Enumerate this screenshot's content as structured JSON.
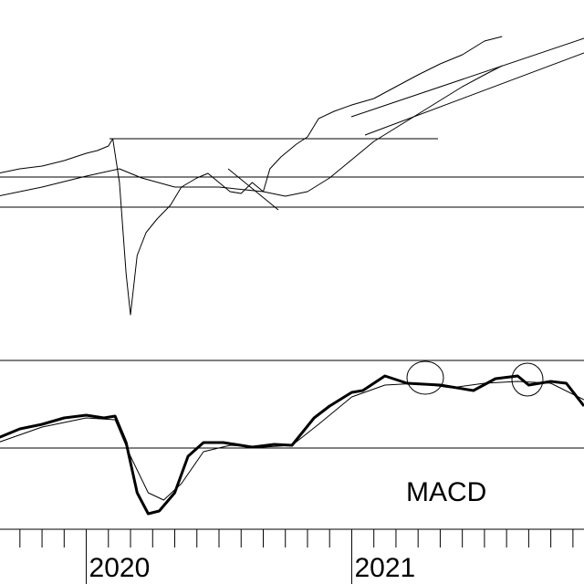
{
  "chart_data": {
    "type": "line",
    "annotation": "MACD",
    "xlim": [
      -3.9,
      22.5
    ],
    "xticks": [
      {
        "value": 0,
        "label": "2020"
      },
      {
        "value": 12,
        "label": "2021"
      }
    ],
    "xminorticks": [
      -3,
      -2,
      -1,
      1,
      2,
      3,
      4,
      5,
      6,
      7,
      8,
      9,
      10,
      11,
      13,
      14,
      15,
      16,
      17,
      18,
      19,
      20,
      21,
      22
    ],
    "ylim": [
      0,
      360
    ],
    "y2lim": [
      -89,
      96
    ],
    "series": [
      {
        "color": "#000000",
        "width": 1,
        "x": [
          -4,
          -3,
          -2,
          -1,
          0,
          0.5,
          1,
          1.2,
          1.5,
          1.8,
          2.0,
          2.3,
          2.7,
          3.2,
          3.8,
          4.3,
          5,
          5.5,
          6,
          6.5,
          7,
          7.5,
          8,
          8.3,
          8.8,
          9.5,
          10,
          10.5,
          11.2,
          12,
          13,
          14,
          15,
          16,
          17,
          18,
          18.8
        ],
        "values": [
          190,
          195,
          198,
          204,
          212,
          215,
          220,
          228,
          180,
          80,
          35,
          100,
          125,
          140,
          155,
          175,
          185,
          190,
          180,
          170,
          168,
          180,
          170,
          195,
          208,
          222,
          230,
          250,
          258,
          265,
          272,
          285,
          298,
          310,
          320,
          335,
          340
        ]
      },
      {
        "color": "#000000",
        "width": 1,
        "x": [
          -4,
          -2,
          0,
          1.5,
          2.5,
          4,
          6,
          8,
          9,
          10,
          11,
          12,
          13,
          14,
          15,
          16,
          17,
          18,
          18.8
        ],
        "values": [
          165,
          175,
          187,
          195,
          185,
          175,
          175,
          170,
          165,
          170,
          185,
          205,
          225,
          240,
          255,
          270,
          285,
          298,
          308
        ]
      },
      {
        "color": "#000000",
        "width": 3,
        "axis": "y2",
        "x": [
          -4,
          -3,
          -2,
          -1,
          0,
          0.8,
          1.3,
          1.8,
          2.3,
          2.8,
          3.3,
          4,
          4.6,
          5.3,
          6.2,
          7.5,
          8.5,
          9.3,
          10.3,
          11,
          12,
          12.5,
          13.5,
          14.5,
          16,
          17.5,
          18.5,
          19.5,
          20,
          21,
          21.7,
          22.5
        ],
        "values": [
          11,
          21,
          26,
          33,
          36,
          33,
          35,
          6,
          -49,
          -72,
          -69,
          -49,
          -9,
          6,
          6,
          1,
          4,
          3,
          33,
          46,
          61,
          63,
          79,
          71,
          69,
          63,
          76,
          79,
          69,
          73,
          71,
          46
        ]
      },
      {
        "color": "#000000",
        "width": 1,
        "axis": "y2",
        "x": [
          -4,
          -2,
          0,
          1.3,
          2,
          2.8,
          3.5,
          4.3,
          5.3,
          6.5,
          8,
          9.3,
          10.5,
          12,
          13.5,
          15,
          16.5,
          18,
          19.5,
          21,
          22.5
        ],
        "values": [
          6,
          23,
          33,
          31,
          -9,
          -49,
          -57,
          -39,
          -4,
          3,
          1,
          3,
          26,
          56,
          69,
          71,
          66,
          71,
          73,
          71,
          53
        ]
      }
    ]
  }
}
